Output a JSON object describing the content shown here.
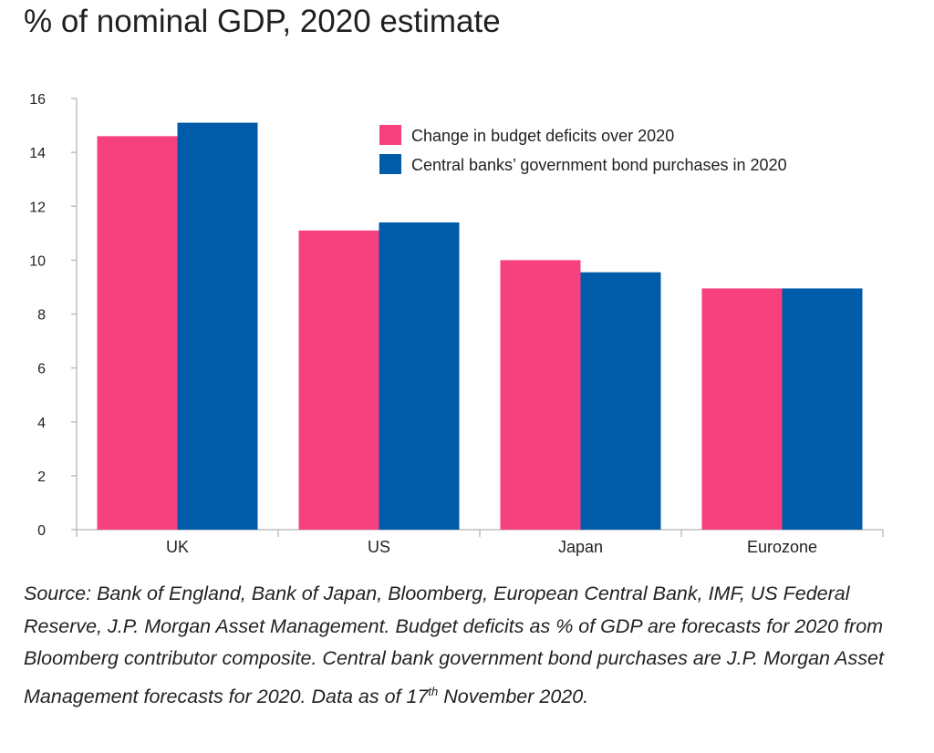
{
  "title": "% of nominal GDP, 2020 estimate",
  "source": {
    "text": "Source: Bank of England, Bank of Japan, Bloomberg, European Central Bank, IMF, US Federal Reserve, J.P. Morgan Asset Management. Budget deficits as % of GDP are forecasts for 2020 from Bloomberg contributor composite. Central bank government bond purchases are J.P. Morgan Asset Management forecasts for 2020. Data as of 17",
    "superscript": "th",
    "text_end": " November 2020."
  },
  "chart_data": {
    "type": "bar",
    "title": "% of nominal GDP, 2020 estimate",
    "xlabel": "",
    "ylabel": "",
    "categories": [
      "UK",
      "US",
      "Japan",
      "Eurozone"
    ],
    "series": [
      {
        "name": "Change in budget deficits over 2020",
        "color": "#f7417e",
        "values": [
          14.6,
          11.1,
          10.0,
          8.95
        ]
      },
      {
        "name": "Central banks’ government bond purchases in 2020",
        "color": "#005ca9",
        "values": [
          15.1,
          11.4,
          9.55,
          8.95
        ]
      }
    ],
    "ylim": [
      0,
      16
    ],
    "yticks": [
      0,
      2,
      4,
      6,
      8,
      10,
      12,
      14,
      16
    ],
    "grid": false,
    "legend_position": "top-right"
  }
}
